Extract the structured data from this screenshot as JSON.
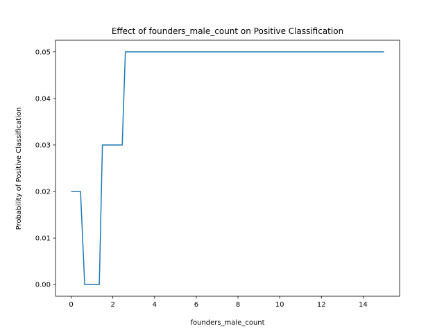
{
  "chart_data": {
    "type": "line",
    "title": "Effect of founders_male_count on Positive Classification",
    "xlabel": "founders_male_count",
    "ylabel": "Probability of Positive Classification",
    "xlim": [
      -0.75,
      15.75
    ],
    "ylim": [
      -0.0025,
      0.0525
    ],
    "xticks": [
      0,
      2,
      4,
      6,
      8,
      10,
      12,
      14
    ],
    "xtick_labels": [
      "0",
      "2",
      "4",
      "6",
      "8",
      "10",
      "12",
      "14"
    ],
    "yticks": [
      0.0,
      0.01,
      0.02,
      0.03,
      0.04,
      0.05
    ],
    "ytick_labels": [
      "0.00",
      "0.01",
      "0.02",
      "0.03",
      "0.04",
      "0.05"
    ],
    "grid": false,
    "line_color": "#1f77b4",
    "series": [
      {
        "x": [
          0.0,
          0.45,
          0.65,
          1.35,
          1.5,
          2.45,
          2.6,
          15.0
        ],
        "y": [
          0.02,
          0.02,
          0.0,
          0.0,
          0.03,
          0.03,
          0.05,
          0.05
        ]
      }
    ]
  }
}
